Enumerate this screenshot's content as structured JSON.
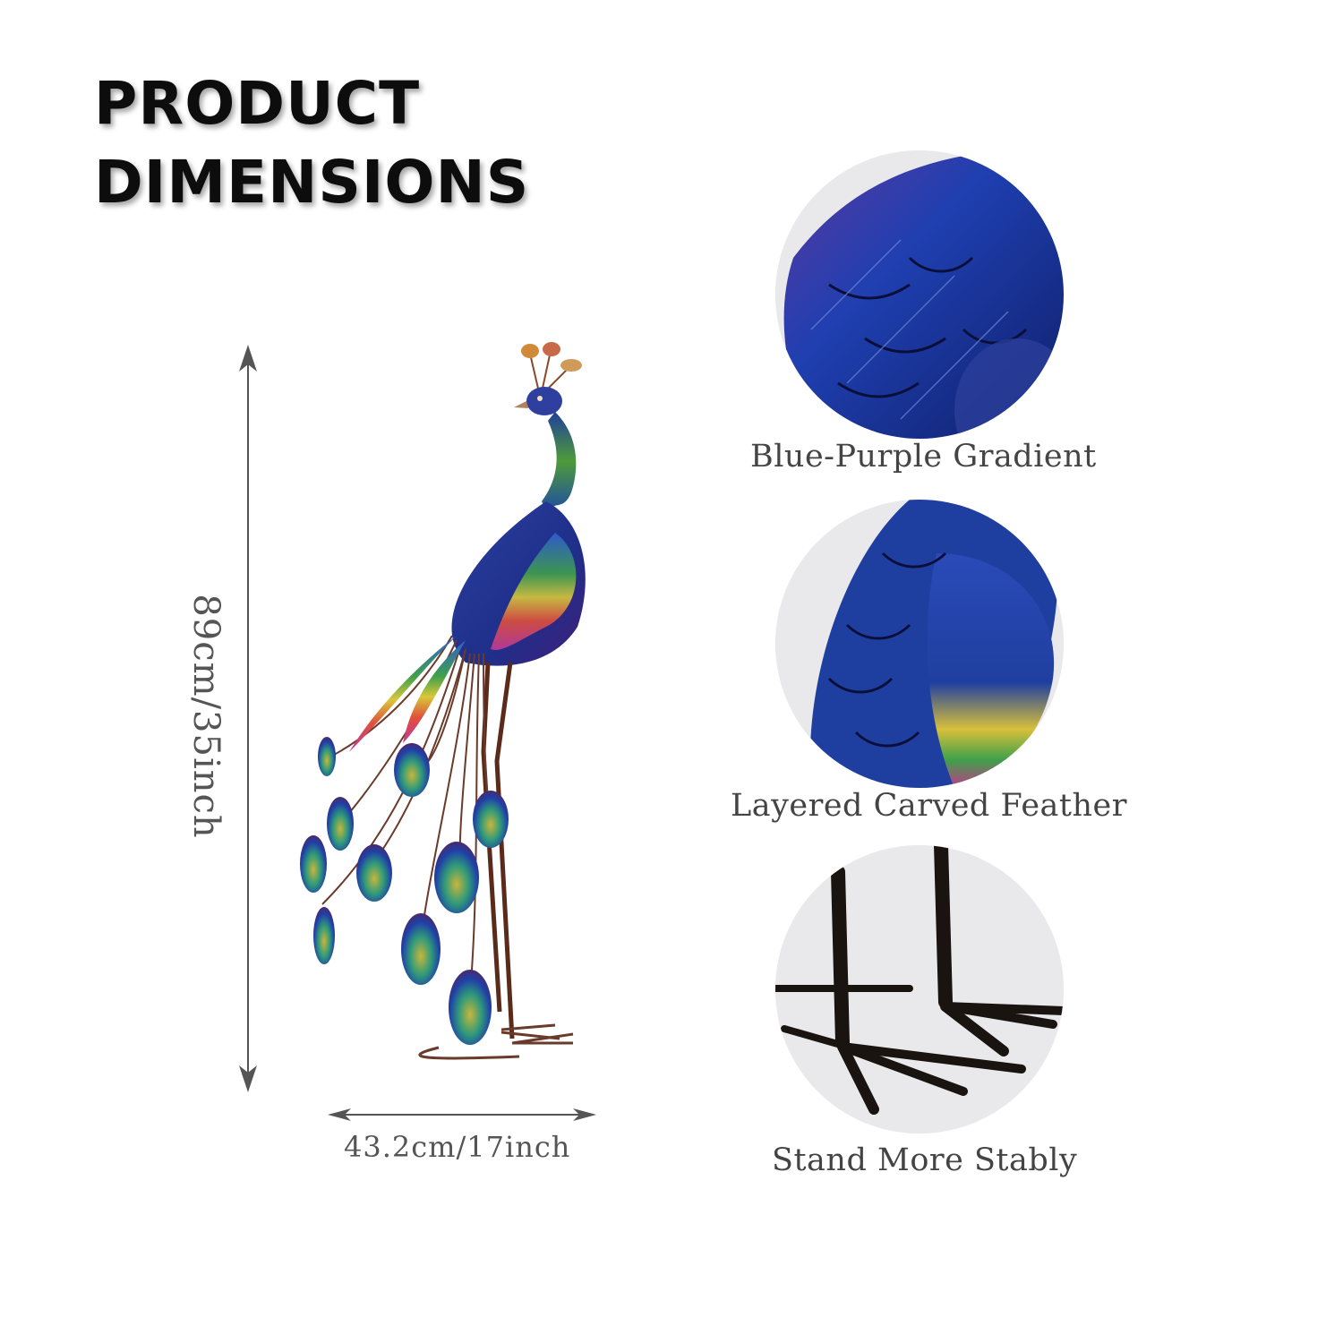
{
  "title": {
    "line1": "PRODUCT",
    "line2": "DIMENSIONS"
  },
  "dimensions": {
    "height": "89cm/35inch",
    "width": "43.2cm/17inch"
  },
  "features": [
    {
      "caption": "Blue-Purple Gradient"
    },
    {
      "caption": "Layered Carved Feather"
    },
    {
      "caption": "Stand More Stably"
    }
  ],
  "colors": {
    "peacock_blue": "#1f3fa8",
    "neck_green": "#3f8a3a",
    "arrow": "#555555"
  }
}
